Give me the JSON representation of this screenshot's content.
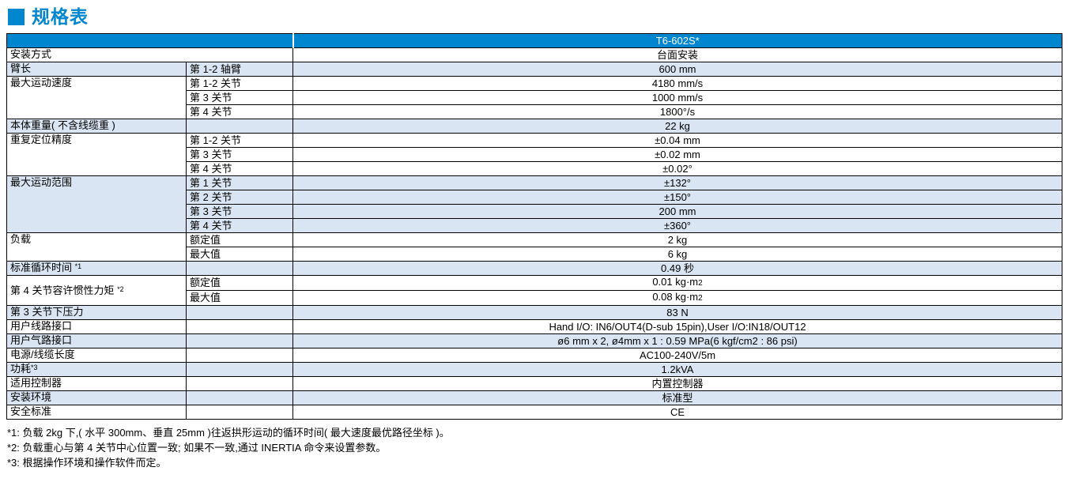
{
  "page": {
    "title": "规格表",
    "accent_color": "#0086CE",
    "row_alt_color": "#D9E5F2"
  },
  "table": {
    "header": {
      "model": "T6-602S*"
    },
    "rows": [
      {
        "group": "安装方式",
        "rowspan": 1,
        "colspan2": true,
        "value": "台面安装",
        "shade": "white"
      },
      {
        "group": "臂长",
        "rowspan": 1,
        "sub": "第 1-2 轴臂",
        "value": "600 mm",
        "shade": "blue"
      },
      {
        "group": "最大运动速度",
        "rowspan": 3,
        "sub": "第 1-2 关节",
        "value": "4180 mm/s",
        "shade": "white"
      },
      {
        "sub": "第 3 关节",
        "value": "1000 mm/s",
        "shade": "white"
      },
      {
        "sub": "第 4 关节",
        "value": "1800°/s",
        "shade": "white"
      },
      {
        "group": "本体重量( 不含线缆重 )",
        "rowspan": 1,
        "sub": "",
        "value": "22 kg",
        "shade": "blue"
      },
      {
        "group": "重复定位精度",
        "rowspan": 3,
        "sub": "第 1-2 关节",
        "value": "±0.04 mm",
        "shade": "white"
      },
      {
        "sub": "第 3 关节",
        "value": "±0.02 mm",
        "shade": "white"
      },
      {
        "sub": "第 4 关节",
        "value": "±0.02°",
        "shade": "white"
      },
      {
        "group": "最大运动范围",
        "rowspan": 4,
        "sub": "第 1 关节",
        "value": "±132°",
        "shade": "blue"
      },
      {
        "sub": "第 2 关节",
        "value": "±150°",
        "shade": "blue"
      },
      {
        "sub": "第 3 关节",
        "value": "200 mm",
        "shade": "blue"
      },
      {
        "sub": "第 4 关节",
        "value": "±360°",
        "shade": "blue"
      },
      {
        "group": "负载",
        "rowspan": 2,
        "sub": "额定值",
        "value": "2 kg",
        "shade": "white"
      },
      {
        "sub": "最大值",
        "value": "6 kg",
        "shade": "white"
      },
      {
        "group": "标准循环时间 ",
        "sup": "*1",
        "rowspan": 1,
        "sub": "",
        "value": "0.49 秒",
        "shade": "blue"
      },
      {
        "group": "第 4 关节容许惯性力矩 ",
        "sup": "*2",
        "valign": "middle",
        "rowspan": 2,
        "sub": "额定值",
        "value": "0.01 kg·m",
        "value_small": "2",
        "shade": "white"
      },
      {
        "sub": "最大值",
        "value": "0.08 kg·m",
        "value_small": "2",
        "shade": "white"
      },
      {
        "group": "第 3 关节下压力",
        "rowspan": 1,
        "sub": "",
        "value": "83 N",
        "shade": "blue"
      },
      {
        "group": "用户线路接口",
        "rowspan": 1,
        "sub": "",
        "value": "Hand I/O: IN6/OUT4(D-sub 15pin),User I/O:IN18/OUT12",
        "shade": "white"
      },
      {
        "group": "用户气路接口",
        "rowspan": 1,
        "sub": "",
        "value": "ø6 mm x 2, ø4mm x 1 : 0.59 MPa(6 kgf/cm2 : 86 psi)",
        "shade": "blue"
      },
      {
        "group": "电源/线缆长度",
        "rowspan": 1,
        "sub": "",
        "value": "AC100-240V/5m",
        "shade": "white"
      },
      {
        "group": "功耗",
        "sup": "*3",
        "rowspan": 1,
        "sub": "",
        "value": "1.2kVA",
        "shade": "blue"
      },
      {
        "group": "适用控制器",
        "rowspan": 1,
        "sub": "",
        "value": "内置控制器",
        "shade": "white"
      },
      {
        "group": "安装环境",
        "rowspan": 1,
        "sub": "",
        "value": "标准型",
        "shade": "blue"
      },
      {
        "group": "安全标准",
        "rowspan": 1,
        "sub": "",
        "value": "CE",
        "shade": "white"
      }
    ]
  },
  "footnotes": [
    "*1: 负载 2kg 下,( 水平 300mm、垂直 25mm )往返拱形运动的循环时间( 最大速度最优路径坐标 )。",
    "*2: 负载重心与第 4 关节中心位置一致; 如果不一致,通过 INERTIA 命令来设置参数。",
    "*3: 根据操作环境和操作软件而定。"
  ]
}
